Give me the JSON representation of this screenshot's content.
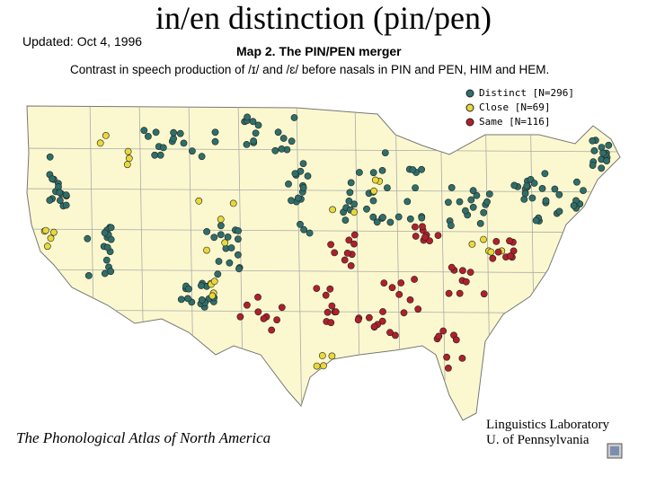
{
  "header": {
    "title": "in/en distinction (pin/pen)",
    "updated": "Updated: Oct 4, 1996"
  },
  "map": {
    "title": "Map 2. The PIN/PEN merger",
    "subtitle": "Contrast in speech production of /ɪ/ and /ɛ/ before nasals in PIN and PEN, HIM and HEM.",
    "legend": [
      "Distinct [N=296]",
      "Close [N=69]",
      "Same [N=116]"
    ]
  },
  "footer": {
    "left": "The Phonological Atlas of North America",
    "right": [
      "Linguistics Laboratory",
      "U. of Pennsylvania"
    ]
  }
}
